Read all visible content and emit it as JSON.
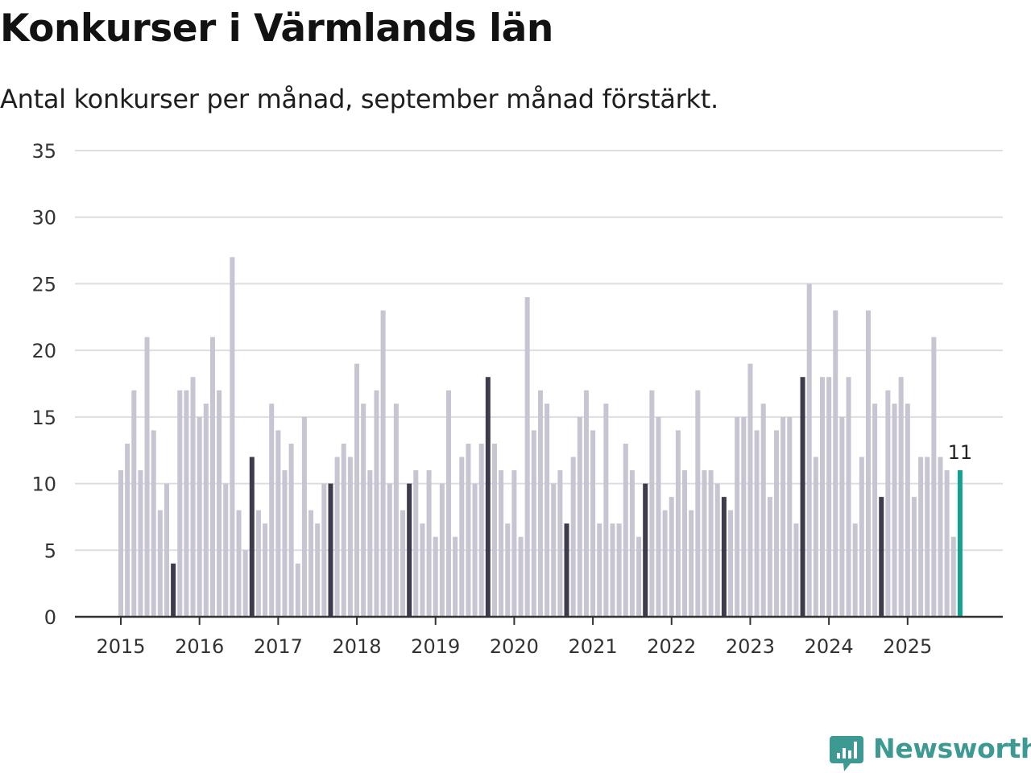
{
  "chart_data": {
    "type": "bar",
    "title": "Konkurser i Värmlands län",
    "subtitle": "Antal konkurser per månad, september månad förstärkt.",
    "xlabel": "",
    "ylabel": "",
    "ylim": [
      0,
      35
    ],
    "yticks": [
      "0",
      "5",
      "10",
      "15",
      "20",
      "25",
      "30",
      "35"
    ],
    "xticks": [
      "2015",
      "2016",
      "2017",
      "2018",
      "2019",
      "2020",
      "2021",
      "2022",
      "2023",
      "2024",
      "2025"
    ],
    "first_month": "2015-01",
    "values": [
      11,
      13,
      17,
      11,
      21,
      14,
      8,
      10,
      4,
      17,
      17,
      18,
      15,
      16,
      21,
      17,
      10,
      27,
      8,
      5,
      12,
      8,
      7,
      16,
      14,
      11,
      13,
      4,
      15,
      8,
      7,
      10,
      10,
      12,
      13,
      12,
      19,
      16,
      11,
      17,
      23,
      10,
      16,
      8,
      10,
      11,
      7,
      11,
      6,
      10,
      17,
      6,
      12,
      13,
      10,
      13,
      18,
      13,
      11,
      7,
      11,
      6,
      24,
      14,
      17,
      16,
      10,
      11,
      7,
      12,
      15,
      17,
      14,
      7,
      16,
      7,
      7,
      13,
      11,
      6,
      10,
      17,
      15,
      8,
      9,
      14,
      11,
      8,
      17,
      11,
      11,
      10,
      9,
      8,
      15,
      15,
      19,
      14,
      16,
      9,
      14,
      15,
      15,
      7,
      18,
      25,
      12,
      18,
      18,
      23,
      15,
      18,
      7,
      12,
      23,
      16,
      9,
      17,
      16,
      18,
      16,
      9,
      12,
      12,
      21,
      12,
      11,
      6,
      11
    ],
    "highlight": "september",
    "last_value_label": "11",
    "colors": {
      "bar": "#c6c5d1",
      "september": "#3d3c4c",
      "latest": "#13a292",
      "grid": "#dedde3",
      "axis": "#333333"
    }
  },
  "brand": {
    "name": "Newsworthy",
    "color": "#3c9a92"
  }
}
